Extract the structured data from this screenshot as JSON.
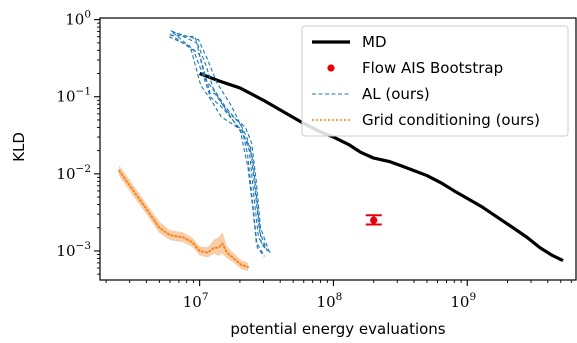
{
  "chart_data": {
    "type": "line",
    "title": "",
    "xlabel": "potential energy evaluations",
    "ylabel": "KLD",
    "xscale": "log",
    "yscale": "log",
    "xlim": [
      1800000,
      6500000000
    ],
    "ylim": [
      0.00042,
      1.05
    ],
    "grid": false,
    "legend_position": "top-right",
    "x_ticks": [
      {
        "value": 10000000,
        "base": "10",
        "exp": "7"
      },
      {
        "value": 100000000,
        "base": "10",
        "exp": "8"
      },
      {
        "value": 1000000000,
        "base": "10",
        "exp": "9"
      }
    ],
    "y_ticks": [
      {
        "value": 0.001,
        "base": "10",
        "exp": "−3"
      },
      {
        "value": 0.01,
        "base": "10",
        "exp": "−2"
      },
      {
        "value": 0.1,
        "base": "10",
        "exp": "−1"
      },
      {
        "value": 1,
        "base": "10",
        "exp": "0"
      }
    ],
    "legend": [
      {
        "key": "md",
        "label": "MD"
      },
      {
        "key": "flow",
        "label": "Flow AIS Bootstrap"
      },
      {
        "key": "al",
        "label": "AL (ours)"
      },
      {
        "key": "grid",
        "label": "Grid conditioning (ours)"
      }
    ],
    "colors": {
      "md": "#000000",
      "flow": "#e8000b",
      "al": "#1f77b4",
      "grid": "#ff7f0e",
      "grid_band": "#f7c9a1"
    },
    "series": [
      {
        "key": "md",
        "style": "solid",
        "x": [
          10000000,
          14000000,
          20000000,
          30000000,
          45000000,
          60000000,
          80000000,
          100000000,
          130000000,
          160000000,
          200000000,
          260000000,
          330000000,
          400000000,
          500000000,
          650000000,
          800000000,
          1000000000,
          1300000000,
          1700000000,
          2200000000,
          2800000000,
          3500000000,
          4300000000,
          5200000000
        ],
        "y": [
          0.2,
          0.16,
          0.13,
          0.09,
          0.06,
          0.045,
          0.035,
          0.03,
          0.024,
          0.019,
          0.016,
          0.0145,
          0.0125,
          0.011,
          0.0095,
          0.0075,
          0.006,
          0.0048,
          0.0037,
          0.0027,
          0.002,
          0.0015,
          0.0011,
          0.00088,
          0.00075
        ]
      },
      {
        "key": "grid",
        "style": "dotted",
        "x": [
          2500000,
          3100000,
          4000000,
          5000000,
          6000000,
          7500000,
          8800000,
          10000000,
          11500000,
          12800000,
          13800000,
          14800000,
          16000000,
          18000000,
          20500000,
          23000000
        ],
        "y": [
          0.011,
          0.0065,
          0.0035,
          0.002,
          0.0016,
          0.0015,
          0.0013,
          0.001,
          0.00095,
          0.0011,
          0.0011,
          0.00125,
          0.00095,
          0.0008,
          0.00066,
          0.00062
        ],
        "y_lower": [
          0.0094,
          0.0055,
          0.003,
          0.0017,
          0.00138,
          0.0013,
          0.00113,
          0.00088,
          0.00082,
          0.00092,
          0.00086,
          0.00092,
          0.0008,
          0.0007,
          0.00058,
          0.00055
        ],
        "y_upper": [
          0.0129,
          0.0077,
          0.0041,
          0.0024,
          0.00186,
          0.00175,
          0.0015,
          0.00115,
          0.00112,
          0.0014,
          0.0015,
          0.00175,
          0.00116,
          0.00093,
          0.00076,
          0.0007
        ]
      },
      {
        "key": "al",
        "style": "dashed",
        "runs": [
          {
            "x": [
              6100000,
              9500000,
              11000000,
              12800000,
              16000000,
              22000000,
              24500000,
              26500000,
              28500000,
              33000000
            ],
            "y": [
              0.72,
              0.5,
              0.17,
              0.12,
              0.065,
              0.04,
              0.025,
              0.008,
              0.002,
              0.001
            ]
          },
          {
            "x": [
              6000000,
              9000000,
              10500000,
              12000000,
              15000000,
              21000000,
              23500000,
              25500000,
              27500000,
              31000000
            ],
            "y": [
              0.65,
              0.4,
              0.2,
              0.1,
              0.07,
              0.035,
              0.02,
              0.005,
              0.0015,
              0.0011
            ]
          },
          {
            "x": [
              6200000,
              9800000,
              11500000,
              13500000,
              17000000,
              22500000,
              25000000,
              27000000,
              29000000,
              34000000
            ],
            "y": [
              0.7,
              0.55,
              0.3,
              0.15,
              0.08,
              0.03,
              0.015,
              0.004,
              0.0012,
              0.00095
            ]
          },
          {
            "x": [
              5900000,
              8500000,
              10200000,
              12200000,
              14500000,
              20000000,
              23000000,
              25000000,
              26500000,
              30000000
            ],
            "y": [
              0.6,
              0.45,
              0.14,
              0.09,
              0.055,
              0.038,
              0.012,
              0.0035,
              0.0013,
              0.0009
            ]
          },
          {
            "x": [
              6300000,
              10000000,
              12000000,
              13000000,
              16500000,
              21500000,
              24000000,
              26000000,
              28000000,
              32000000
            ],
            "y": [
              0.68,
              0.35,
              0.11,
              0.11,
              0.06,
              0.03,
              0.022,
              0.006,
              0.0018,
              0.001
            ]
          },
          {
            "x": [
              6000000,
              9200000,
              11200000,
              12600000,
              15500000,
              20500000,
              22800000,
              24800000,
              27000000,
              30500000
            ],
            "y": [
              0.63,
              0.6,
              0.25,
              0.13,
              0.075,
              0.042,
              0.018,
              0.0045,
              0.0011,
              0.00085
            ]
          }
        ]
      },
      {
        "key": "flow",
        "style": "errorbar",
        "x": [
          200000000
        ],
        "y": [
          0.0025
        ],
        "y_lower": [
          0.0022
        ],
        "y_upper": [
          0.0029
        ]
      }
    ]
  }
}
